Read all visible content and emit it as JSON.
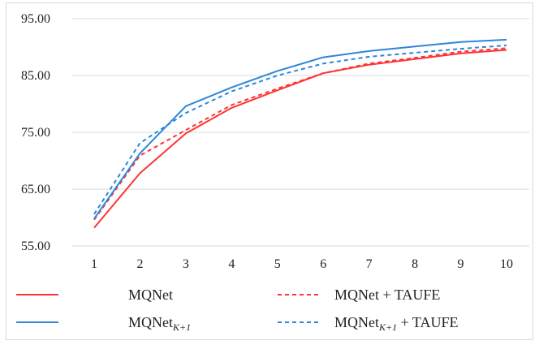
{
  "chart_data": {
    "type": "line",
    "title": "",
    "xlabel": "",
    "ylabel": "",
    "x": [
      1,
      2,
      3,
      4,
      5,
      6,
      7,
      8,
      9,
      10
    ],
    "x_tick_labels": [
      "1",
      "2",
      "3",
      "4",
      "5",
      "6",
      "7",
      "8",
      "9",
      "10"
    ],
    "ylim": [
      55,
      95
    ],
    "y_ticks": [
      55,
      65,
      75,
      85,
      95
    ],
    "y_tick_labels": [
      "55.00",
      "65.00",
      "75.00",
      "85.00",
      "95.00"
    ],
    "grid": "horizontal",
    "legend_position": "bottom",
    "series": [
      {
        "name": "MQNet",
        "name_parts": {
          "base": "MQNet",
          "sub": "",
          "suffix": ""
        },
        "color": "#ff3333",
        "dashed": false,
        "values": [
          58.2,
          67.8,
          74.8,
          79.3,
          82.4,
          85.4,
          86.9,
          87.9,
          88.9,
          89.5
        ]
      },
      {
        "name": "MQNet + TAUFE",
        "name_parts": {
          "base": "MQNet + TAUFE",
          "sub": "",
          "suffix": ""
        },
        "color": "#ff3333",
        "dashed": true,
        "values": [
          59.6,
          70.9,
          75.4,
          79.8,
          82.7,
          85.4,
          87.1,
          88.1,
          89.2,
          89.8
        ]
      },
      {
        "name": "MQNet_{K+1}",
        "name_parts": {
          "base": "MQNet",
          "sub": "K+1",
          "suffix": ""
        },
        "color": "#2e86d9",
        "dashed": false,
        "values": [
          59.8,
          71.3,
          79.6,
          82.9,
          85.8,
          88.2,
          89.3,
          90.1,
          90.9,
          91.3
        ]
      },
      {
        "name": "MQNet_{K+1} + TAUFE",
        "name_parts": {
          "base": "MQNet",
          "sub": "K+1",
          "suffix": " + TAUFE"
        },
        "color": "#2e86d9",
        "dashed": true,
        "values": [
          60.6,
          73.1,
          78.4,
          82.2,
          85.0,
          87.1,
          88.3,
          89.0,
          89.7,
          90.3
        ]
      }
    ]
  }
}
